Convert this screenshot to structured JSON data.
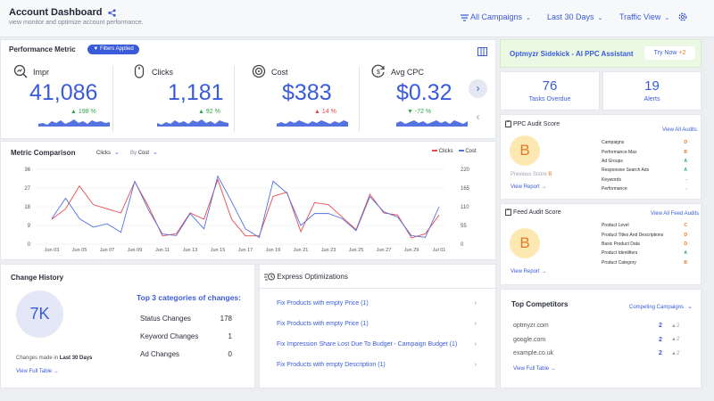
{
  "header": {
    "title": "Account Dashboard",
    "subtitle": "view monitor and optimize account performance.",
    "campaigns": "All Campaigns",
    "days": "Last 30 Days",
    "view": "Traffic View"
  },
  "perf": {
    "title": "Performance Metric",
    "filter_badge": "Filters Applied",
    "metrics": [
      {
        "label": "Impr",
        "value": "41,086",
        "change": "198 %",
        "dir": "up",
        "color": "#2fa84f"
      },
      {
        "label": "Clicks",
        "value": "1,181",
        "change": "92 %",
        "dir": "up",
        "color": "#2fa84f"
      },
      {
        "label": "Cost",
        "value": "$383",
        "change": "14 %",
        "dir": "up",
        "color": "#e04848"
      },
      {
        "label": "Avg CPC",
        "value": "$0.32",
        "change": "-72 %",
        "dir": "down",
        "color": "#2fa84f"
      }
    ]
  },
  "sidekick": {
    "title": "Optmyzr Sidekick - AI PPC Assistant",
    "button": "Try Now",
    "badge": "+2"
  },
  "tasks": {
    "value": "76",
    "label": "Tasks Overdue"
  },
  "alerts": {
    "value": "19",
    "label": "Alerts"
  },
  "comparison": {
    "title": "Metric Comparison",
    "sel1": "Clicks",
    "sel2_prefix": "By",
    "sel2": "Cost",
    "legend1": "Clicks",
    "legend2": "Cost"
  },
  "chart_data": {
    "type": "line",
    "title": "Metric Comparison",
    "x": [
      "Jun 03",
      "Jun 04",
      "Jun 05",
      "Jun 06",
      "Jun 07",
      "Jun 08",
      "Jun 09",
      "Jun 10",
      "Jun 11",
      "Jun 12",
      "Jun 13",
      "Jun 14",
      "Jun 15",
      "Jun 16",
      "Jun 17",
      "Jun 18",
      "Jun 19",
      "Jun 20",
      "Jun 21",
      "Jun 22",
      "Jun 23",
      "Jun 24",
      "Jun 25",
      "Jun 26",
      "Jun 27",
      "Jun 28",
      "Jun 29",
      "Jun 30",
      "Jul 01"
    ],
    "xticks": [
      "Jun 03",
      "Jun 05",
      "Jun 07",
      "Jun 09",
      "Jun 11",
      "Jun 13",
      "Jun 15",
      "Jun 17",
      "Jun 19",
      "Jun 21",
      "Jun 23",
      "Jun 25",
      "Jun 27",
      "Jun 29",
      "Jul 01"
    ],
    "yleft": {
      "ticks": [
        0,
        9,
        18,
        27,
        36
      ],
      "range": [
        0,
        36
      ]
    },
    "yright": {
      "ticks": [
        0,
        55,
        110,
        165,
        220
      ],
      "range": [
        0,
        220
      ]
    },
    "series": [
      {
        "name": "Clicks",
        "axis": "left",
        "color": "#e8474c",
        "values": [
          12,
          17,
          28,
          19,
          17,
          15,
          30,
          18,
          4,
          5,
          15,
          12,
          31,
          12,
          4,
          4,
          23,
          25,
          6,
          20,
          19,
          13,
          7,
          24,
          15,
          14,
          3,
          5,
          14
        ]
      },
      {
        "name": "Cost",
        "axis": "right",
        "color": "#5472e0",
        "values": [
          75,
          135,
          75,
          50,
          60,
          35,
          185,
          100,
          30,
          25,
          90,
          45,
          200,
          125,
          45,
          20,
          185,
          150,
          55,
          90,
          90,
          75,
          40,
          140,
          95,
          80,
          25,
          20,
          110
        ]
      }
    ]
  },
  "ppc": {
    "title": "PPC Audit Score",
    "grade": "B",
    "prev_label": "Previous Score",
    "prev": "B",
    "view_all": "View All Audits",
    "view_report": "View Report",
    "items": [
      {
        "name": "Campaigns",
        "grade": "D",
        "color": "#e0792a"
      },
      {
        "name": "Performance Max",
        "grade": "B",
        "color": "#e0792a"
      },
      {
        "name": "Ad Groups",
        "grade": "A",
        "color": "#2fa84f"
      },
      {
        "name": "Responsive Search Ads",
        "grade": "A",
        "color": "#2fa84f"
      },
      {
        "name": "Keywords",
        "grade": "-",
        "color": "#999999"
      },
      {
        "name": "Performance",
        "grade": "-",
        "color": "#999999"
      }
    ]
  },
  "feed": {
    "title": "Feed Audit Score",
    "grade": "B",
    "view_all": "View All Feed Audits",
    "view_report": "View Report",
    "items": [
      {
        "name": "Product Level",
        "grade": "C",
        "color": "#e0792a"
      },
      {
        "name": "Product Titles And Descriptions",
        "grade": "D",
        "color": "#e0792a"
      },
      {
        "name": "Basic Product Data",
        "grade": "D",
        "color": "#e0792a"
      },
      {
        "name": "Product Identifiers",
        "grade": "A",
        "color": "#2fa84f"
      },
      {
        "name": "Product Category",
        "grade": "B",
        "color": "#e0792a"
      }
    ]
  },
  "change": {
    "title": "Change History",
    "value": "7K",
    "made_in": "Changes made in",
    "period": "Last 30 Days",
    "view": "View Full Table",
    "top_title": "Top 3 categories of changes:",
    "rows": [
      {
        "name": "Status Changes",
        "count": "178"
      },
      {
        "name": "Keyword Changes",
        "count": "1"
      },
      {
        "name": "Ad Changes",
        "count": "0"
      }
    ]
  },
  "express": {
    "title": "Express Optimizations",
    "items": [
      "Fix Products with empty Price (1)",
      "Fix Products with empty Price (1)",
      "Fix Impression Share Lost Due To Budget - Campaign Budget (1)",
      "Fix Products with empty Description (1)"
    ]
  },
  "competitors": {
    "title": "Top Competitors",
    "filter": "Competing Campaigns",
    "view": "View Full Table",
    "rows": [
      {
        "domain": "optmyzr.com",
        "count": "2",
        "delta": "2"
      },
      {
        "domain": "google.com",
        "count": "2",
        "delta": "2"
      },
      {
        "domain": "example.co.uk",
        "count": "2",
        "delta": "2"
      }
    ]
  }
}
